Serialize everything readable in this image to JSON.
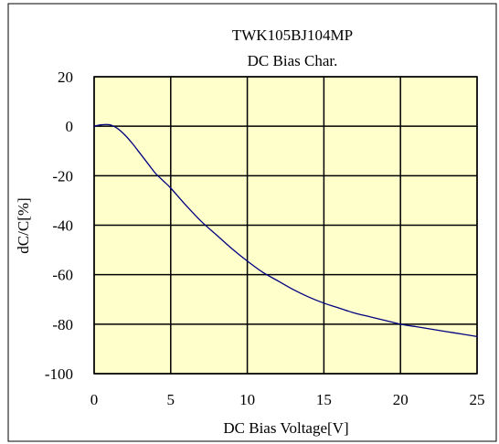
{
  "chart_data": {
    "type": "line",
    "title": "TWK105BJ104MP",
    "subtitle": "DC Bias Char.",
    "xlabel": "DC Bias Voltage[V]",
    "ylabel": "dC/C[%]",
    "xlim": [
      0,
      25
    ],
    "ylim": [
      -100,
      20
    ],
    "xticks": [
      0,
      5,
      10,
      15,
      20,
      25
    ],
    "yticks": [
      20,
      0,
      -20,
      -40,
      -60,
      -80,
      -100
    ],
    "xtick_labels": [
      "0",
      "5",
      "10",
      "15",
      "20",
      "25"
    ],
    "ytick_labels": [
      "20",
      "0",
      "-20",
      "-40",
      "-60",
      "-80",
      "-100"
    ],
    "grid": true,
    "colors": {
      "plot_background": "#ffffcc",
      "line": "#000080",
      "grid": "#000000",
      "frame": "#000000"
    },
    "series": [
      {
        "x": [
          0,
          0.5,
          1,
          1.5,
          2,
          2.5,
          3,
          3.5,
          4,
          4.5,
          5,
          6,
          7,
          8,
          9,
          10,
          11,
          12,
          13,
          14,
          15,
          16,
          17,
          18,
          19,
          20,
          21,
          22,
          23,
          24,
          25
        ],
        "y": [
          0,
          0.6,
          0.6,
          -0.8,
          -3.5,
          -7,
          -11,
          -15,
          -19,
          -22,
          -25,
          -32,
          -38.5,
          -44,
          -49.5,
          -54.5,
          -59,
          -62.5,
          -66,
          -69,
          -71.5,
          -73.5,
          -75.5,
          -77,
          -78.5,
          -80,
          -81,
          -82,
          -83,
          -84,
          -85
        ]
      }
    ]
  }
}
